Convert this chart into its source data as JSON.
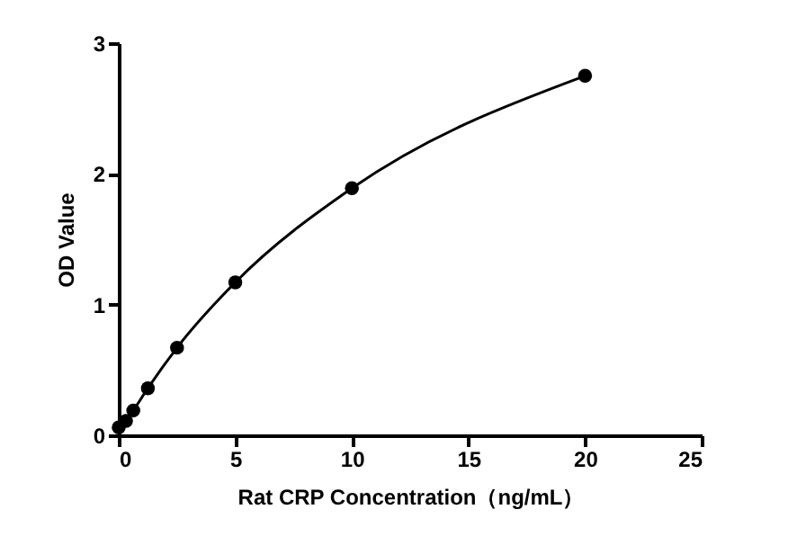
{
  "chart_data": {
    "type": "line",
    "xlabel": "Rat CRP Concentration（ng/mL）",
    "ylabel": "OD Value",
    "xlim": [
      0,
      25
    ],
    "xticks": [
      0,
      5,
      10,
      15,
      20,
      25
    ],
    "ylim": [
      0,
      3
    ],
    "yticks": [
      0,
      1,
      2,
      3
    ],
    "grid": false,
    "marker": "circle",
    "line_style": "solid",
    "x": [
      0,
      0.3125,
      0.625,
      1.25,
      2.5,
      5,
      10,
      20
    ],
    "series": [
      {
        "color": "#000000",
        "values": [
          0.06,
          0.11,
          0.19,
          0.36,
          0.67,
          1.17,
          1.89,
          2.75
        ]
      }
    ]
  }
}
